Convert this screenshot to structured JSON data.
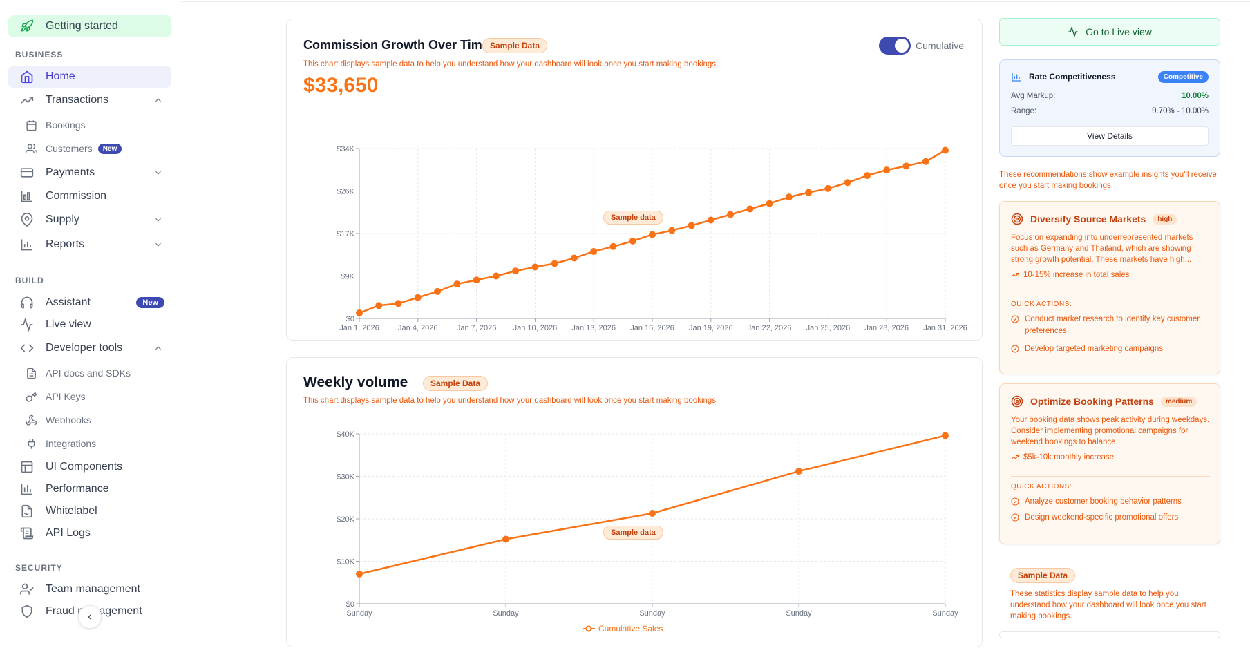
{
  "sidebar": {
    "getting_started": "Getting started",
    "sections": {
      "business": "BUSINESS",
      "build": "BUILD",
      "security": "SECURITY"
    },
    "items": {
      "home": "Home",
      "transactions": "Transactions",
      "bookings": "Bookings",
      "customers": "Customers",
      "payments": "Payments",
      "commission": "Commission",
      "supply": "Supply",
      "reports": "Reports",
      "assistant": "Assistant",
      "live_view": "Live view",
      "developer_tools": "Developer tools",
      "api_docs": "API docs and SDKs",
      "api_keys": "API Keys",
      "webhooks": "Webhooks",
      "integrations": "Integrations",
      "ui_components": "UI Components",
      "performance": "Performance",
      "whitelabel": "Whitelabel",
      "api_logs": "API Logs",
      "team_management": "Team management",
      "fraud_management": "Fraud management"
    },
    "badge_new": "New"
  },
  "commission_card": {
    "title": "Commission Growth Over Time",
    "pill": "Sample Data",
    "note": "This chart displays sample data to help you understand how your dashboard will look once you start making bookings.",
    "total": "$33,650",
    "toggle_label": "Cumulative",
    "overlay_label": "Sample data"
  },
  "weekly_card": {
    "title": "Weekly volume",
    "pill": "Sample Data",
    "note": "This chart displays sample data to help you understand how your dashboard will look once you start making bookings.",
    "overlay_label": "Sample data",
    "legend": "Cumulative Sales"
  },
  "right": {
    "live_button": "Go to Live view",
    "rate": {
      "title": "Rate Competitiveness",
      "badge": "Competitive",
      "avg_label": "Avg Markup:",
      "avg_value": "10.00%",
      "range_label": "Range:",
      "range_value": "9.70% - 10.00%",
      "button": "View Details"
    },
    "rec_note": "These recommendations show example insights you'll receive once you start making bookings.",
    "recommendations": [
      {
        "title": "Diversify Source Markets",
        "priority": "high",
        "body": "Focus on expanding into underrepresented markets such as Germany and Thailand, which are showing strong growth potential. These markets have high...",
        "impact": "10-15% increase in total sales",
        "qa_label": "QUICK ACTIONS:",
        "actions": [
          "Conduct market research to identify key customer preferences",
          "Develop targeted marketing campaigns"
        ]
      },
      {
        "title": "Optimize Booking Patterns",
        "priority": "medium",
        "body": "Your booking data shows peak activity during weekdays. Consider implementing promotional campaigns for weekend bookings to balance...",
        "impact": "$5k-10k monthly increase",
        "qa_label": "QUICK ACTIONS:",
        "actions": [
          "Analyze customer booking behavior patterns",
          "Design weekend-specific promotional offers"
        ]
      }
    ],
    "stats_pill": "Sample Data",
    "stats_note": "These statistics display sample data to help you understand how your dashboard will look once you start making bookings."
  },
  "colors": {
    "accent": "#f97316",
    "brand": "#3f4ab0",
    "green": "#16a34a"
  },
  "chart_data": [
    {
      "type": "line",
      "x": [
        "Jan 1, 2026",
        "Jan 2, 2026",
        "Jan 3, 2026",
        "Jan 4, 2026",
        "Jan 5, 2026",
        "Jan 6, 2026",
        "Jan 7, 2026",
        "Jan 8, 2026",
        "Jan 9, 2026",
        "Jan 10, 2026",
        "Jan 11, 2026",
        "Jan 12, 2026",
        "Jan 13, 2026",
        "Jan 14, 2026",
        "Jan 15, 2026",
        "Jan 16, 2026",
        "Jan 17, 2026",
        "Jan 18, 2026",
        "Jan 19, 2026",
        "Jan 20, 2026",
        "Jan 21, 2026",
        "Jan 22, 2026",
        "Jan 23, 2026",
        "Jan 24, 2026",
        "Jan 25, 2026",
        "Jan 26, 2026",
        "Jan 27, 2026",
        "Jan 28, 2026",
        "Jan 29, 2026",
        "Jan 30, 2026",
        "Jan 31, 2026"
      ],
      "xticks": [
        "Jan 1, 2026",
        "Jan 4, 2026",
        "Jan 7, 2026",
        "Jan 10, 2026",
        "Jan 13, 2026",
        "Jan 16, 2026",
        "Jan 19, 2026",
        "Jan 22, 2026",
        "Jan 25, 2026",
        "Jan 28, 2026",
        "Jan 31, 2026"
      ],
      "series": [
        {
          "values": [
            1100,
            2600,
            3000,
            4200,
            5400,
            6900,
            7700,
            8500,
            9500,
            10300,
            11000,
            12100,
            13400,
            14400,
            15500,
            16800,
            17600,
            18600,
            19700,
            20800,
            21900,
            23000,
            24300,
            25200,
            26000,
            27200,
            28600,
            29700,
            30500,
            31400,
            33650
          ]
        }
      ],
      "yticks": [
        "$0",
        "$9K",
        "$17K",
        "$26K",
        "$34K"
      ],
      "ytick_values": [
        0,
        8500,
        17000,
        25500,
        34000
      ],
      "ylim": [
        0,
        34000
      ],
      "grid": true
    },
    {
      "type": "line",
      "x": [
        "Sunday",
        "Sunday",
        "Sunday",
        "Sunday",
        "Sunday"
      ],
      "series": [
        {
          "name": "Cumulative Sales",
          "values": [
            7000,
            15200,
            21300,
            31200,
            39600
          ]
        }
      ],
      "yticks": [
        "$0",
        "$10K",
        "$20K",
        "$30K",
        "$40K"
      ],
      "ytick_values": [
        0,
        10000,
        20000,
        30000,
        40000
      ],
      "ylim": [
        0,
        40000
      ],
      "grid": true,
      "legend": "bottom"
    }
  ]
}
